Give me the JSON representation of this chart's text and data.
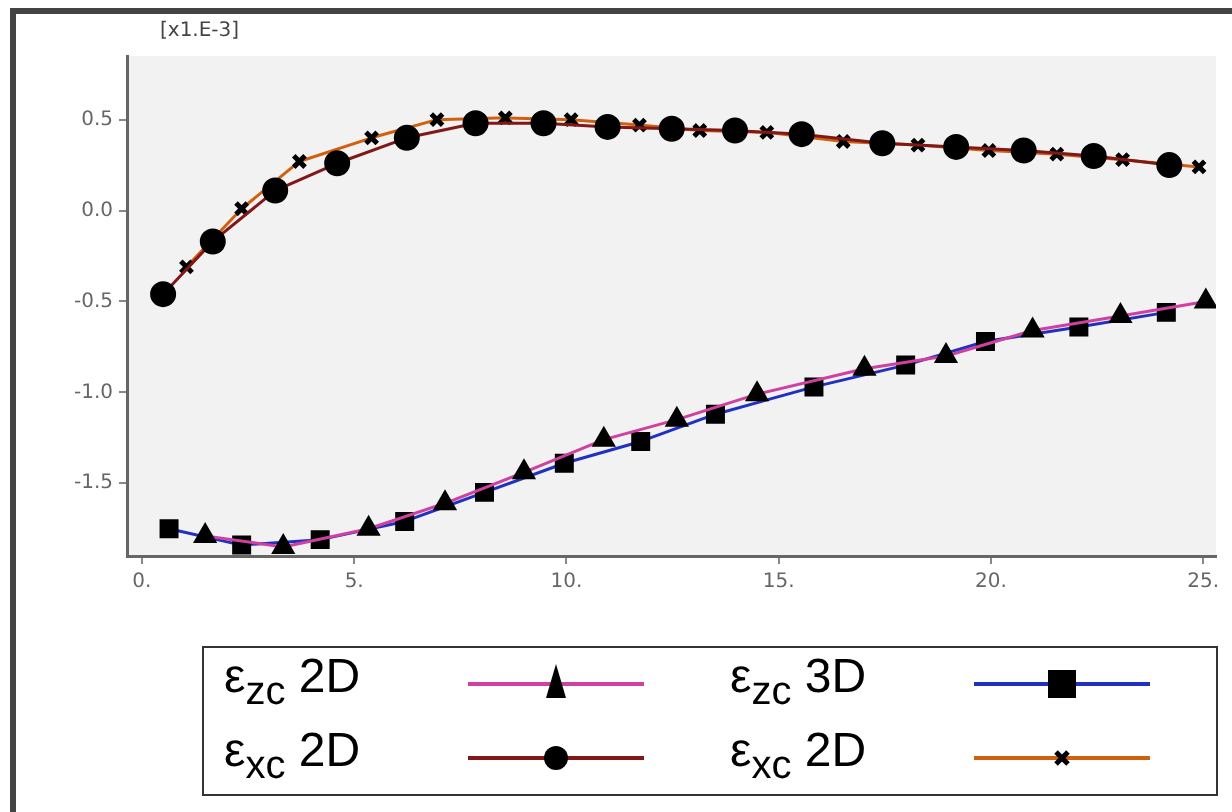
{
  "chart_data": {
    "type": "line",
    "annotations": [
      "[x1.E-3]"
    ],
    "xlim": [
      -0.35,
      25.3
    ],
    "xticks": [
      {
        "value": 0,
        "label": "0."
      },
      {
        "value": 5,
        "label": "5."
      },
      {
        "value": 10,
        "label": "10."
      },
      {
        "value": 15,
        "label": "15."
      },
      {
        "value": 20,
        "label": "20."
      },
      {
        "value": 25,
        "label": "25."
      }
    ],
    "ylim": [
      -1.9,
      0.85
    ],
    "yticks": [
      {
        "value": -1.5,
        "label": "-1.5"
      },
      {
        "value": -1.0,
        "label": "-1.0"
      },
      {
        "value": -0.5,
        "label": "-0.5"
      },
      {
        "value": 0.0,
        "label": "0.0"
      },
      {
        "value": 0.5,
        "label": "0.5"
      }
    ],
    "grid": false,
    "legend": "bottom",
    "line_style": "solid",
    "series": [
      {
        "name": "ε$_{zc}$ 2D",
        "color": "#d040a0",
        "marker": "triangle",
        "x": [
          1.49,
          3.33,
          5.34,
          7.14,
          9.0,
          10.88,
          12.6,
          14.49,
          17.02,
          18.94,
          20.98,
          23.05,
          25.06
        ],
        "values": [
          -1.79,
          -1.85,
          -1.75,
          -1.61,
          -1.44,
          -1.26,
          -1.15,
          -1.01,
          -0.87,
          -0.8,
          -0.66,
          -0.58,
          -0.5
        ]
      },
      {
        "name": "ε$_{zc}$ 3D",
        "color": "#2030c0",
        "marker": "square",
        "x": [
          0.64,
          2.35,
          4.2,
          6.19,
          8.07,
          9.95,
          11.75,
          13.51,
          15.83,
          17.99,
          19.87,
          22.07,
          24.13
        ],
        "values": [
          -1.75,
          -1.84,
          -1.81,
          -1.71,
          -1.55,
          -1.39,
          -1.27,
          -1.12,
          -0.97,
          -0.85,
          -0.72,
          -0.64,
          -0.56
        ]
      },
      {
        "name": "ε$_{xc}$ 2D",
        "color": "#801818",
        "marker": "circle",
        "x": [
          0.5,
          1.67,
          3.14,
          4.6,
          6.24,
          7.86,
          9.46,
          10.97,
          12.48,
          13.97,
          15.54,
          17.44,
          19.18,
          20.77,
          22.42,
          24.2
        ],
        "values": [
          -0.46,
          -0.17,
          0.11,
          0.26,
          0.4,
          0.48,
          0.48,
          0.46,
          0.45,
          0.44,
          0.42,
          0.37,
          0.35,
          0.33,
          0.3,
          0.25
        ]
      },
      {
        "name": "ε$_{xc}$ 2D",
        "color": "#d06010",
        "marker": "cross",
        "x": [
          1.05,
          2.35,
          3.71,
          5.41,
          6.95,
          8.56,
          10.11,
          11.72,
          13.14,
          14.72,
          16.52,
          18.28,
          19.95,
          21.55,
          23.1,
          24.9
        ],
        "values": [
          -0.31,
          0.01,
          0.27,
          0.4,
          0.5,
          0.51,
          0.5,
          0.47,
          0.44,
          0.43,
          0.38,
          0.36,
          0.33,
          0.31,
          0.28,
          0.24
        ]
      }
    ]
  }
}
